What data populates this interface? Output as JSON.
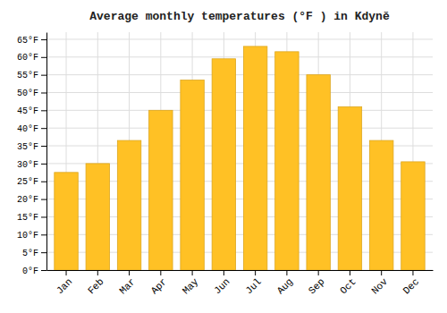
{
  "chart_data": {
    "type": "bar",
    "title": "Average monthly temperatures (°F ) in Kdyně",
    "categories": [
      "Jan",
      "Feb",
      "Mar",
      "Apr",
      "May",
      "Jun",
      "Jul",
      "Aug",
      "Sep",
      "Oct",
      "Nov",
      "Dec"
    ],
    "values": [
      27.5,
      30.0,
      36.5,
      45.0,
      53.5,
      59.5,
      63.0,
      61.5,
      55.0,
      46.0,
      36.5,
      30.5
    ],
    "color": "#FFC125",
    "ylim": [
      0,
      67
    ],
    "yticks": [
      {
        "value": 0,
        "label": "0°F"
      },
      {
        "value": 5,
        "label": "5°F"
      },
      {
        "value": 10,
        "label": "10°F"
      },
      {
        "value": 15,
        "label": "15°F"
      },
      {
        "value": 20,
        "label": "20°F"
      },
      {
        "value": 25,
        "label": "25°F"
      },
      {
        "value": 30,
        "label": "30°F"
      },
      {
        "value": 35,
        "label": "35°F"
      },
      {
        "value": 40,
        "label": "40°F"
      },
      {
        "value": 45,
        "label": "45°F"
      },
      {
        "value": 50,
        "label": "50°F"
      },
      {
        "value": 55,
        "label": "55°F"
      },
      {
        "value": 60,
        "label": "60°F"
      },
      {
        "value": 65,
        "label": "65°F"
      }
    ],
    "grid": true
  }
}
